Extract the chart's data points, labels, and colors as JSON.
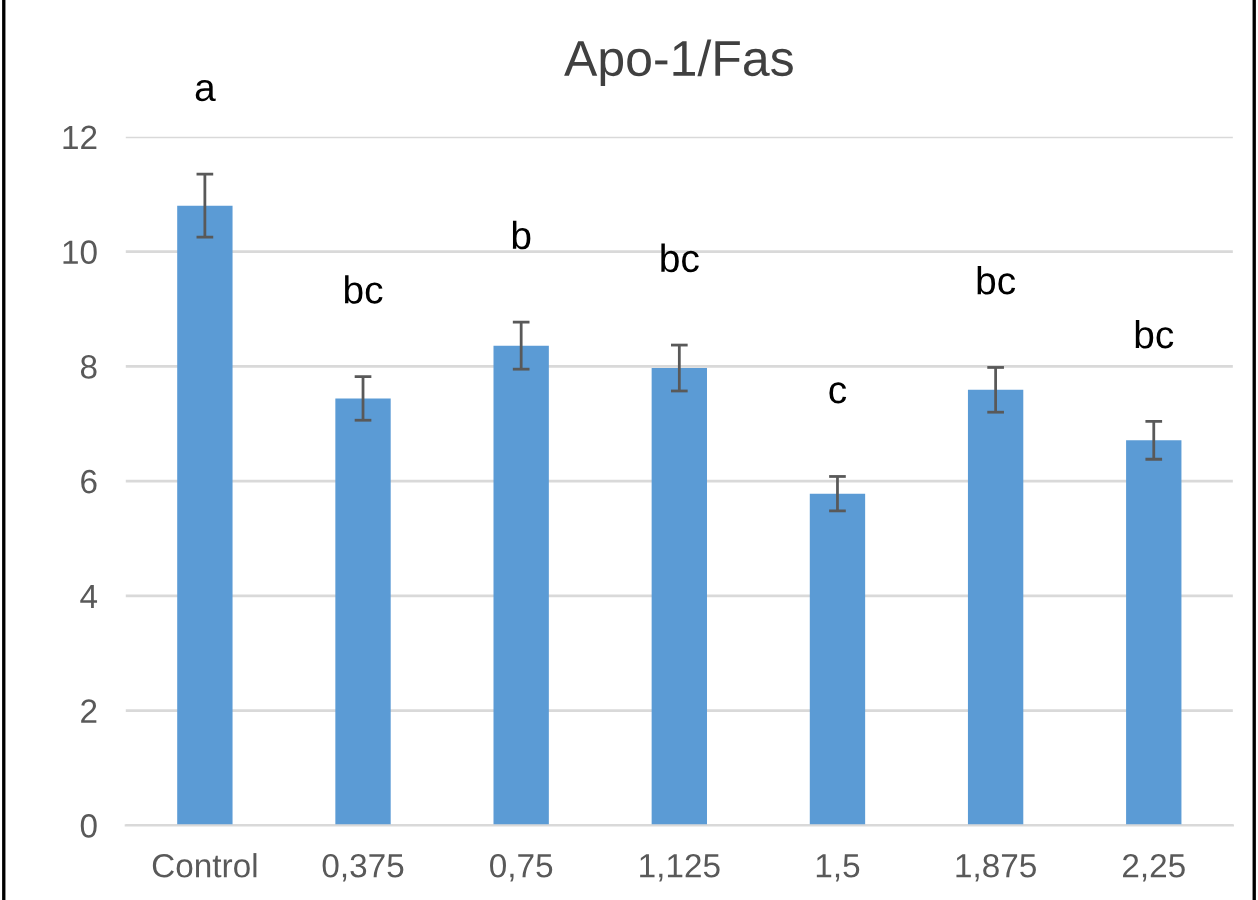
{
  "chart_data": {
    "type": "bar",
    "title": "Apo-1/Fas",
    "categories": [
      "Control",
      "0,375",
      "0,75",
      "1,125",
      "1,5",
      "1,875",
      "2,25"
    ],
    "values": [
      10.8,
      7.44,
      8.36,
      7.97,
      5.78,
      7.59,
      6.71
    ],
    "errors": [
      0.55,
      0.38,
      0.41,
      0.4,
      0.3,
      0.39,
      0.33
    ],
    "color": "#5b9bd5",
    "ylim": [
      0,
      12
    ],
    "yticks": [
      0,
      2,
      4,
      6,
      8,
      10,
      12
    ],
    "grid": "y",
    "annotations": [
      "a",
      "bc",
      "b",
      "bc",
      "c",
      "bc",
      "bc"
    ]
  }
}
